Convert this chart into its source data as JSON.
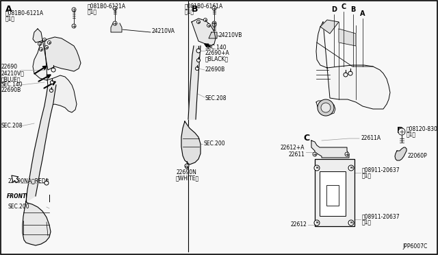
{
  "background_color": "#f8f8f8",
  "border_color": "#000000",
  "text_color": "#000000",
  "diagram_code": "JPP6007C",
  "label_A_top": "A",
  "label_B_top": "B",
  "label_C": "C",
  "label_D": "D",
  "part_081B0_6121A_1": "Ⓑ081B0-6121A",
  "part_081B0_6121A_2": "Ⓑ081B0-6121A",
  "part_081B0_6161A": "Ⓑ081B0-6161A",
  "part_24210VA": "-24210VA",
  "part_24210VB": "-24210VB",
  "part_22690_blue": "22690",
  "part_24210V_blue": "24210V（BLUE）",
  "part_sec140": "SEC.140",
  "part_22690b_left": "22690B",
  "part_sec208_left": "SEC.208",
  "part_22690na_red": "22690NA（RED）",
  "part_sec200_left": "SEC.200",
  "part_sec140_right": "SEC.140",
  "part_22690a_black": "22690+A",
  "part_black": "（BLACK）",
  "part_22690b_right": "22690B",
  "part_sec208_right": "SEC.208",
  "part_sec200_right": "SEC.200",
  "part_22690n_white": "22690N",
  "part_white": "（WHITE）",
  "part_22611a": "22611A",
  "part_22612a": "22612+A",
  "part_22611": "22611",
  "part_N08911_1": "Ⓝ08911-20637",
  "part_N08911_1_note": "（1）",
  "part_N08911_2": "Ⓝ08911-20637",
  "part_N08911_2_note": "（1）",
  "part_22612": "22612",
  "part_08120_8301a": "Ⓑ08120-8301A",
  "part_08120_note": "（1）",
  "part_22060p": "22060P",
  "front_label": "FRONT"
}
